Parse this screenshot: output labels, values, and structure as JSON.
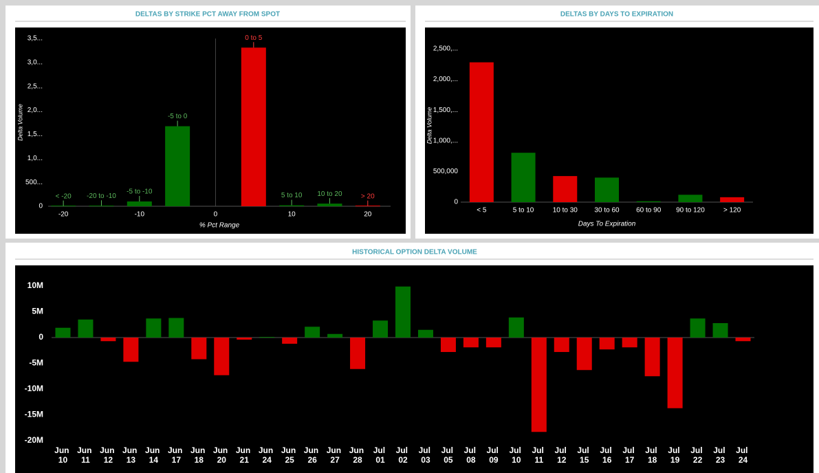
{
  "chart_data": [
    {
      "type": "bar",
      "title": "DELTAS BY STRIKE PCT AWAY FROM SPOT",
      "x_label": "% Pct Range",
      "y_label": "Delta Volume",
      "categories": [
        "< -20",
        "-20 to -10",
        "-5 to -10",
        "-5 to 0",
        "0 to 5",
        "5 to 10",
        "10 to 20",
        "> 20"
      ],
      "x": [
        -20,
        -15,
        -10,
        -5,
        5,
        10,
        15,
        20
      ],
      "values": [
        5,
        10,
        100,
        1670,
        3310,
        20,
        55,
        5
      ],
      "colors": [
        "#007000",
        "#007000",
        "#007000",
        "#007000",
        "#e00000",
        "#007000",
        "#007000",
        "#e00000"
      ],
      "xlim": [
        -22,
        23
      ],
      "xticks": [
        -20,
        -10,
        0,
        10,
        20
      ],
      "ylim": [
        0,
        3500
      ],
      "yticks": [
        0,
        {
          "value": 500,
          "label": "500..."
        },
        {
          "value": 1000,
          "label": "1,0..."
        },
        {
          "value": 1500,
          "label": "1,5..."
        },
        {
          "value": 2000,
          "label": "2,0..."
        },
        {
          "value": 2500,
          "label": "2,5..."
        },
        {
          "value": 3000,
          "label": "3,0..."
        },
        {
          "value": 3500,
          "label": "3,5..."
        }
      ]
    },
    {
      "type": "bar",
      "title": "DELTAS BY DAYS TO EXPIRATION",
      "x_label": "Days To Expiration",
      "y_label": "Delta Volume",
      "categories": [
        "< 5",
        "5 to 10",
        "10 to 30",
        "30 to 60",
        "60 to 90",
        "90 to 120",
        "> 120"
      ],
      "values": [
        2280000,
        805000,
        425000,
        400000,
        15000,
        120000,
        80000
      ],
      "colors": [
        "#e00000",
        "#007000",
        "#e00000",
        "#007000",
        "#007000",
        "#007000",
        "#e00000"
      ],
      "ylim": [
        0,
        2500000
      ],
      "yticks": [
        0,
        {
          "value": 500000,
          "label": "500,000"
        },
        {
          "value": 1000000,
          "label": "1,000,..."
        },
        {
          "value": 1500000,
          "label": "1,500,..."
        },
        {
          "value": 2000000,
          "label": "2,000,..."
        },
        {
          "value": 2500000,
          "label": "2,500,..."
        }
      ]
    },
    {
      "type": "bar",
      "title": "HISTORICAL OPTION DELTA VOLUME",
      "categories": [
        "Jun 10",
        "Jun 11",
        "Jun 12",
        "Jun 13",
        "Jun 14",
        "Jun 17",
        "Jun 18",
        "Jun 20",
        "Jun 21",
        "Jun 24",
        "Jun 25",
        "Jun 26",
        "Jun 27",
        "Jun 28",
        "Jul 01",
        "Jul 02",
        "Jul 03",
        "Jul 05",
        "Jul 08",
        "Jul 09",
        "Jul 10",
        "Jul 11",
        "Jul 12",
        "Jul 15",
        "Jul 16",
        "Jul 17",
        "Jul 18",
        "Jul 19",
        "Jul 22",
        "Jul 23",
        "Jul 24"
      ],
      "values": [
        1900000,
        3500000,
        -700000,
        -4700000,
        3700000,
        3800000,
        -4200000,
        -7300000,
        -400000,
        100000,
        -1200000,
        2100000,
        700000,
        -6100000,
        3300000,
        9900000,
        1500000,
        -2800000,
        -1900000,
        -1900000,
        3900000,
        -18300000,
        -2800000,
        -6300000,
        -2300000,
        -1900000,
        -7500000,
        -13700000,
        3700000,
        2800000,
        -700000
      ],
      "positive_color": "#007000",
      "negative_color": "#e00000",
      "ylim": [
        -20000000,
        10000000
      ],
      "yticks": [
        {
          "value": 10000000,
          "label": "10M"
        },
        {
          "value": 5000000,
          "label": "5M"
        },
        0,
        {
          "value": -5000000,
          "label": "-5M"
        },
        {
          "value": -10000000,
          "label": "-10M"
        },
        {
          "value": -15000000,
          "label": "-15M"
        },
        {
          "value": -20000000,
          "label": "-20M"
        }
      ]
    }
  ]
}
